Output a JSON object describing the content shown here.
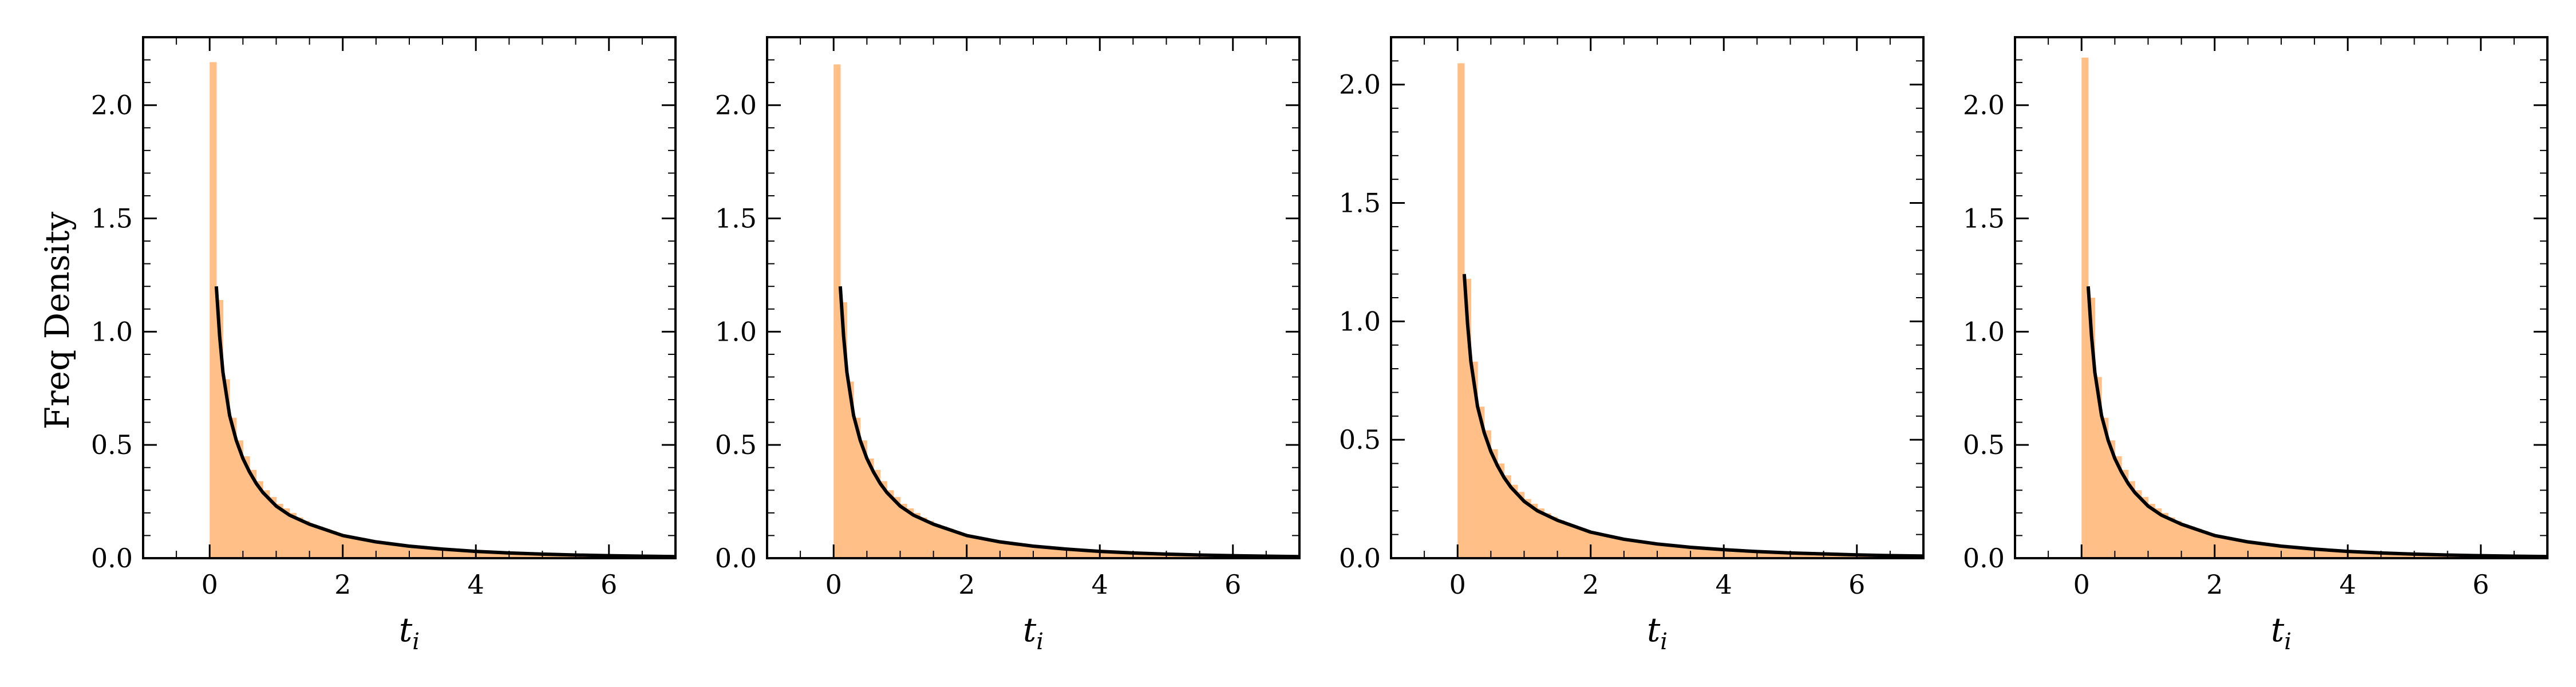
{
  "figure": {
    "background": "#ffffff",
    "hist_color": "#ffbf86",
    "curve_color": "#000000"
  },
  "chart_data": [
    {
      "type": "bar",
      "panel_id": "panel-1",
      "xlabel": "t_i",
      "ylabel": "Freq Density",
      "xlim": [
        -1,
        7
      ],
      "ylim": [
        0,
        2.3
      ],
      "xticks": [
        0,
        2,
        4,
        6
      ],
      "yticks": [
        0.0,
        0.5,
        1.0,
        1.5,
        2.0
      ],
      "ytick_labels": [
        "0.0",
        "0.5",
        "1.0",
        "1.5",
        "2.0"
      ],
      "grid": false,
      "histogram": {
        "bin_width": 0.1,
        "bin_start": 0,
        "values": [
          2.19,
          1.14,
          0.79,
          0.62,
          0.52,
          0.45,
          0.39,
          0.34,
          0.3,
          0.27,
          0.24,
          0.22,
          0.2,
          0.18,
          0.165,
          0.15,
          0.14,
          0.13,
          0.12,
          0.11,
          0.102,
          0.094,
          0.087,
          0.08,
          0.074,
          0.069,
          0.064,
          0.059,
          0.055,
          0.051,
          0.047,
          0.044,
          0.041,
          0.038,
          0.035,
          0.033,
          0.031,
          0.029,
          0.027,
          0.025,
          0.023,
          0.021,
          0.02,
          0.019,
          0.017,
          0.016,
          0.015,
          0.014,
          0.013,
          0.012,
          0.011,
          0.01,
          0.0095,
          0.009,
          0.0085,
          0.008,
          0.0075,
          0.007,
          0.0065,
          0.006,
          0.0055,
          0.005,
          0.0047,
          0.0044,
          0.0041,
          0.0038,
          0.0035,
          0.0032,
          0.003,
          0.0028
        ]
      },
      "curve": {
        "x": [
          0.1,
          0.15,
          0.2,
          0.3,
          0.4,
          0.5,
          0.6,
          0.7,
          0.8,
          1.0,
          1.2,
          1.5,
          2.0,
          2.5,
          3.0,
          3.5,
          4.0,
          4.5,
          5.0,
          5.5,
          6.0,
          6.5,
          7.0
        ],
        "y": [
          1.2,
          0.98,
          0.82,
          0.63,
          0.52,
          0.44,
          0.38,
          0.33,
          0.29,
          0.23,
          0.19,
          0.15,
          0.1,
          0.072,
          0.053,
          0.04,
          0.03,
          0.023,
          0.018,
          0.014,
          0.011,
          0.009,
          0.007
        ]
      }
    },
    {
      "type": "bar",
      "panel_id": "panel-2",
      "xlabel": "t_i",
      "ylabel": "",
      "xlim": [
        -1,
        7
      ],
      "ylim": [
        0,
        2.3
      ],
      "xticks": [
        0,
        2,
        4,
        6
      ],
      "yticks": [
        0.0,
        0.5,
        1.0,
        1.5,
        2.0
      ],
      "ytick_labels": [
        "0.0",
        "0.5",
        "1.0",
        "1.5",
        "2.0"
      ],
      "grid": false,
      "histogram": {
        "bin_width": 0.1,
        "bin_start": 0,
        "values": [
          2.18,
          1.13,
          0.78,
          0.62,
          0.52,
          0.44,
          0.39,
          0.34,
          0.3,
          0.27,
          0.24,
          0.22,
          0.2,
          0.18,
          0.165,
          0.15,
          0.14,
          0.13,
          0.12,
          0.11,
          0.102,
          0.094,
          0.087,
          0.08,
          0.074,
          0.069,
          0.064,
          0.059,
          0.055,
          0.051,
          0.047,
          0.044,
          0.041,
          0.038,
          0.035,
          0.033,
          0.031,
          0.029,
          0.027,
          0.025,
          0.023,
          0.021,
          0.02,
          0.019,
          0.017,
          0.016,
          0.015,
          0.014,
          0.013,
          0.012,
          0.011,
          0.01,
          0.0095,
          0.009,
          0.0085,
          0.008,
          0.0075,
          0.007,
          0.0065,
          0.006,
          0.0055,
          0.005,
          0.0047,
          0.0044,
          0.0041,
          0.0038,
          0.0035,
          0.0032,
          0.003,
          0.0028
        ]
      },
      "curve": {
        "x": [
          0.1,
          0.15,
          0.2,
          0.3,
          0.4,
          0.5,
          0.6,
          0.7,
          0.8,
          1.0,
          1.2,
          1.5,
          2.0,
          2.5,
          3.0,
          3.5,
          4.0,
          4.5,
          5.0,
          5.5,
          6.0,
          6.5,
          7.0
        ],
        "y": [
          1.2,
          0.98,
          0.82,
          0.63,
          0.52,
          0.44,
          0.38,
          0.33,
          0.29,
          0.23,
          0.19,
          0.15,
          0.1,
          0.072,
          0.053,
          0.04,
          0.03,
          0.023,
          0.018,
          0.014,
          0.011,
          0.009,
          0.007
        ]
      }
    },
    {
      "type": "bar",
      "panel_id": "panel-3",
      "xlabel": "t_i",
      "ylabel": "",
      "xlim": [
        -1,
        7
      ],
      "ylim": [
        0,
        2.2
      ],
      "xticks": [
        0,
        2,
        4,
        6
      ],
      "yticks": [
        0.0,
        0.5,
        1.0,
        1.5,
        2.0
      ],
      "ytick_labels": [
        "0.0",
        "0.5",
        "1.0",
        "1.5",
        "2.0"
      ],
      "grid": false,
      "histogram": {
        "bin_width": 0.1,
        "bin_start": 0,
        "values": [
          2.09,
          1.18,
          0.83,
          0.64,
          0.54,
          0.46,
          0.4,
          0.35,
          0.31,
          0.28,
          0.25,
          0.23,
          0.21,
          0.19,
          0.175,
          0.16,
          0.148,
          0.137,
          0.127,
          0.118,
          0.11,
          0.102,
          0.095,
          0.088,
          0.082,
          0.076,
          0.071,
          0.066,
          0.062,
          0.058,
          0.054,
          0.05,
          0.047,
          0.044,
          0.041,
          0.038,
          0.036,
          0.034,
          0.032,
          0.03,
          0.028,
          0.026,
          0.025,
          0.024,
          0.022,
          0.021,
          0.02,
          0.019,
          0.018,
          0.017,
          0.016,
          0.015,
          0.014,
          0.013,
          0.012,
          0.011,
          0.0105,
          0.01,
          0.0095,
          0.009,
          0.0085,
          0.008,
          0.0075,
          0.007,
          0.0065,
          0.006,
          0.0055,
          0.005,
          0.0047,
          0.0044
        ]
      },
      "curve": {
        "x": [
          0.1,
          0.15,
          0.2,
          0.3,
          0.4,
          0.5,
          0.6,
          0.7,
          0.8,
          1.0,
          1.2,
          1.5,
          2.0,
          2.5,
          3.0,
          3.5,
          4.0,
          4.5,
          5.0,
          5.5,
          6.0,
          6.5,
          7.0
        ],
        "y": [
          1.2,
          0.99,
          0.83,
          0.64,
          0.53,
          0.45,
          0.39,
          0.34,
          0.3,
          0.24,
          0.2,
          0.16,
          0.11,
          0.08,
          0.06,
          0.046,
          0.036,
          0.028,
          0.022,
          0.018,
          0.014,
          0.011,
          0.009
        ]
      }
    },
    {
      "type": "bar",
      "panel_id": "panel-4",
      "xlabel": "t_i",
      "ylabel": "",
      "xlim": [
        -1,
        7
      ],
      "ylim": [
        0,
        2.3
      ],
      "xticks": [
        0,
        2,
        4,
        6
      ],
      "yticks": [
        0.0,
        0.5,
        1.0,
        1.5,
        2.0
      ],
      "ytick_labels": [
        "0.0",
        "0.5",
        "1.0",
        "1.5",
        "2.0"
      ],
      "grid": false,
      "histogram": {
        "bin_width": 0.1,
        "bin_start": 0,
        "values": [
          2.21,
          1.15,
          0.8,
          0.62,
          0.52,
          0.45,
          0.39,
          0.34,
          0.3,
          0.27,
          0.24,
          0.22,
          0.2,
          0.18,
          0.165,
          0.15,
          0.14,
          0.13,
          0.12,
          0.11,
          0.102,
          0.094,
          0.087,
          0.08,
          0.074,
          0.069,
          0.064,
          0.059,
          0.055,
          0.051,
          0.047,
          0.044,
          0.041,
          0.038,
          0.035,
          0.033,
          0.031,
          0.029,
          0.027,
          0.025,
          0.023,
          0.021,
          0.02,
          0.019,
          0.017,
          0.016,
          0.015,
          0.014,
          0.013,
          0.012,
          0.011,
          0.01,
          0.0095,
          0.009,
          0.0085,
          0.008,
          0.0075,
          0.007,
          0.0065,
          0.006,
          0.0055,
          0.005,
          0.0047,
          0.0044,
          0.0041,
          0.0038,
          0.0035,
          0.0032,
          0.003,
          0.0028
        ]
      },
      "curve": {
        "x": [
          0.1,
          0.15,
          0.2,
          0.3,
          0.4,
          0.5,
          0.6,
          0.7,
          0.8,
          1.0,
          1.2,
          1.5,
          2.0,
          2.5,
          3.0,
          3.5,
          4.0,
          4.5,
          5.0,
          5.5,
          6.0,
          6.5,
          7.0
        ],
        "y": [
          1.2,
          0.98,
          0.82,
          0.63,
          0.52,
          0.44,
          0.38,
          0.33,
          0.29,
          0.23,
          0.19,
          0.15,
          0.1,
          0.072,
          0.053,
          0.04,
          0.03,
          0.023,
          0.018,
          0.014,
          0.011,
          0.009,
          0.007
        ]
      }
    }
  ]
}
